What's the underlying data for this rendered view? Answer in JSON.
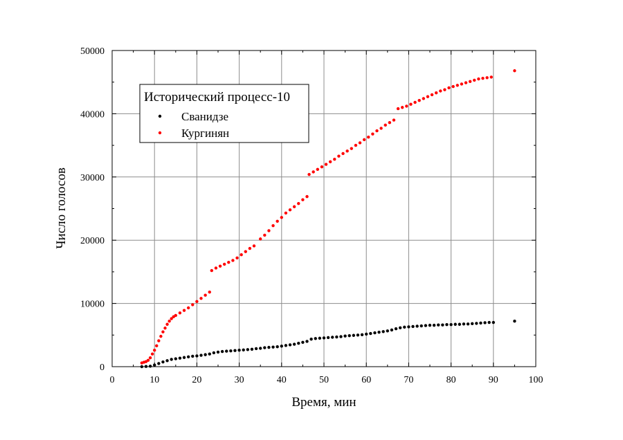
{
  "chart_data": {
    "type": "scatter",
    "title": "",
    "xlabel": "Время, мин",
    "ylabel": "Число голосов",
    "xlim": [
      0,
      100
    ],
    "ylim": [
      0,
      50000
    ],
    "xticks": [
      0,
      10,
      20,
      30,
      40,
      50,
      60,
      70,
      80,
      90,
      100
    ],
    "yticks": [
      0,
      10000,
      20000,
      30000,
      40000,
      50000
    ],
    "grid": true,
    "legend": {
      "title": "Исторический процесс-10",
      "placement": "top-left"
    },
    "series": [
      {
        "name": "Сванидзе",
        "color": "#000000",
        "points": [
          [
            7,
            0
          ],
          [
            8,
            30
          ],
          [
            9,
            80
          ],
          [
            10,
            250
          ],
          [
            11,
            500
          ],
          [
            12,
            750
          ],
          [
            13,
            950
          ],
          [
            14,
            1150
          ],
          [
            15,
            1250
          ],
          [
            16,
            1350
          ],
          [
            17,
            1450
          ],
          [
            18,
            1550
          ],
          [
            19,
            1650
          ],
          [
            20,
            1700
          ],
          [
            21,
            1800
          ],
          [
            22,
            1900
          ],
          [
            23,
            2000
          ],
          [
            24,
            2200
          ],
          [
            25,
            2300
          ],
          [
            26,
            2400
          ],
          [
            27,
            2450
          ],
          [
            28,
            2500
          ],
          [
            29,
            2550
          ],
          [
            30,
            2600
          ],
          [
            31,
            2650
          ],
          [
            32,
            2700
          ],
          [
            33,
            2750
          ],
          [
            34,
            2850
          ],
          [
            35,
            2900
          ],
          [
            36,
            3000
          ],
          [
            37,
            3050
          ],
          [
            38,
            3100
          ],
          [
            39,
            3150
          ],
          [
            40,
            3250
          ],
          [
            41,
            3350
          ],
          [
            42,
            3450
          ],
          [
            43,
            3550
          ],
          [
            44,
            3700
          ],
          [
            45,
            3850
          ],
          [
            46,
            4000
          ],
          [
            47,
            4350
          ],
          [
            48,
            4450
          ],
          [
            49,
            4500
          ],
          [
            50,
            4550
          ],
          [
            51,
            4600
          ],
          [
            52,
            4650
          ],
          [
            53,
            4700
          ],
          [
            54,
            4750
          ],
          [
            55,
            4850
          ],
          [
            56,
            4900
          ],
          [
            57,
            4950
          ],
          [
            58,
            5000
          ],
          [
            59,
            5050
          ],
          [
            60,
            5150
          ],
          [
            61,
            5250
          ],
          [
            62,
            5350
          ],
          [
            63,
            5450
          ],
          [
            64,
            5550
          ],
          [
            65,
            5650
          ],
          [
            66,
            5800
          ],
          [
            67,
            6000
          ],
          [
            68,
            6150
          ],
          [
            69,
            6250
          ],
          [
            70,
            6300
          ],
          [
            71,
            6350
          ],
          [
            72,
            6400
          ],
          [
            73,
            6450
          ],
          [
            74,
            6500
          ],
          [
            75,
            6550
          ],
          [
            76,
            6550
          ],
          [
            77,
            6600
          ],
          [
            78,
            6600
          ],
          [
            79,
            6650
          ],
          [
            80,
            6650
          ],
          [
            81,
            6700
          ],
          [
            82,
            6700
          ],
          [
            83,
            6750
          ],
          [
            84,
            6750
          ],
          [
            85,
            6800
          ],
          [
            86,
            6850
          ],
          [
            87,
            6900
          ],
          [
            88,
            6950
          ],
          [
            89,
            7000
          ],
          [
            90,
            7000
          ],
          [
            95,
            7200
          ]
        ]
      },
      {
        "name": "Кургинян",
        "color": "#ff0000",
        "points": [
          [
            7,
            600
          ],
          [
            7.5,
            700
          ],
          [
            8,
            800
          ],
          [
            8.5,
            1000
          ],
          [
            9,
            1400
          ],
          [
            9.5,
            2000
          ],
          [
            10,
            2600
          ],
          [
            10.5,
            3300
          ],
          [
            11,
            4100
          ],
          [
            11.5,
            4800
          ],
          [
            12,
            5500
          ],
          [
            12.5,
            6100
          ],
          [
            13,
            6700
          ],
          [
            13.5,
            7200
          ],
          [
            14,
            7600
          ],
          [
            14.5,
            7900
          ],
          [
            15,
            8100
          ],
          [
            16,
            8500
          ],
          [
            17,
            8900
          ],
          [
            18,
            9300
          ],
          [
            19,
            9800
          ],
          [
            20,
            10300
          ],
          [
            21,
            10800
          ],
          [
            22,
            11300
          ],
          [
            23,
            11800
          ],
          [
            23.5,
            15200
          ],
          [
            24.5,
            15600
          ],
          [
            25.5,
            15900
          ],
          [
            26.5,
            16200
          ],
          [
            27.5,
            16500
          ],
          [
            28.5,
            16800
          ],
          [
            29.5,
            17200
          ],
          [
            30.5,
            17700
          ],
          [
            31.5,
            18200
          ],
          [
            32.5,
            18700
          ],
          [
            33.5,
            19100
          ],
          [
            35,
            20200
          ],
          [
            36,
            20800
          ],
          [
            37,
            21500
          ],
          [
            38,
            22300
          ],
          [
            39,
            23000
          ],
          [
            40,
            23600
          ],
          [
            41,
            24300
          ],
          [
            42,
            24800
          ],
          [
            43,
            25300
          ],
          [
            44,
            25800
          ],
          [
            45,
            26400
          ],
          [
            46,
            26900
          ],
          [
            46.5,
            30400
          ],
          [
            47.5,
            30800
          ],
          [
            48.5,
            31200
          ],
          [
            49.5,
            31600
          ],
          [
            50.5,
            32000
          ],
          [
            51.5,
            32400
          ],
          [
            52.5,
            32800
          ],
          [
            53.5,
            33300
          ],
          [
            54.5,
            33700
          ],
          [
            55.5,
            34100
          ],
          [
            56.5,
            34500
          ],
          [
            57.5,
            35000
          ],
          [
            58.5,
            35400
          ],
          [
            59.5,
            35900
          ],
          [
            60.5,
            36300
          ],
          [
            61.5,
            36800
          ],
          [
            62.5,
            37300
          ],
          [
            63.5,
            37700
          ],
          [
            64.5,
            38200
          ],
          [
            65.5,
            38600
          ],
          [
            66.5,
            39000
          ],
          [
            67.5,
            40800
          ],
          [
            68.5,
            41000
          ],
          [
            69.5,
            41200
          ],
          [
            70.5,
            41500
          ],
          [
            71.5,
            41800
          ],
          [
            72.5,
            42100
          ],
          [
            73.5,
            42400
          ],
          [
            74.5,
            42700
          ],
          [
            75.5,
            43000
          ],
          [
            76.5,
            43300
          ],
          [
            77.5,
            43600
          ],
          [
            78.5,
            43800
          ],
          [
            79.5,
            44100
          ],
          [
            80.5,
            44300
          ],
          [
            81.5,
            44500
          ],
          [
            82.5,
            44700
          ],
          [
            83.5,
            44900
          ],
          [
            84.5,
            45100
          ],
          [
            85.5,
            45300
          ],
          [
            86.5,
            45500
          ],
          [
            87.5,
            45600
          ],
          [
            88.5,
            45700
          ],
          [
            89.5,
            45800
          ],
          [
            95,
            46800
          ]
        ]
      }
    ]
  }
}
